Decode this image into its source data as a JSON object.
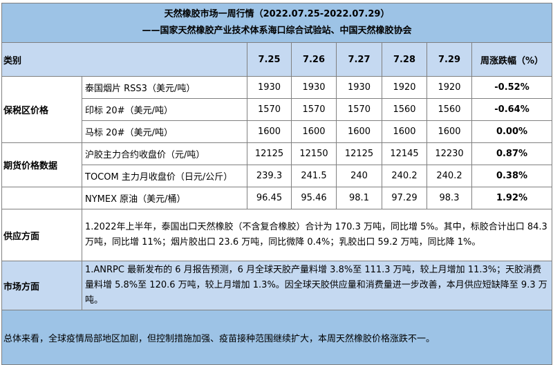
{
  "title": "天然橡胶市场一周行情（2022.07.25-2022.07.29）",
  "subtitle": "——国家天然橡胶产业技术体系海口综合试验站、中国天然橡胶协会",
  "header": {
    "category": "类别",
    "dates": [
      "7.25",
      "7.26",
      "7.27",
      "7.28",
      "7.29"
    ],
    "change": "周涨跌幅（%）"
  },
  "groups": {
    "bonded": "保税区价格",
    "futures": "期货价格数据",
    "supply": "供应方面",
    "market": "市场方面"
  },
  "rows": [
    {
      "item": "泰国烟片 RSS3（美元/吨）",
      "values": [
        "1930",
        "1930",
        "1930",
        "1920",
        "1920"
      ],
      "change": "-0.52%"
    },
    {
      "item": "印标 20#（美元/吨）",
      "values": [
        "1570",
        "1570",
        "1570",
        "1560",
        "1560"
      ],
      "change": "-0.64%"
    },
    {
      "item": "马标 20#（美元/吨）",
      "values": [
        "1600",
        "1600",
        "1600",
        "1600",
        "1600"
      ],
      "change": "0.00%"
    },
    {
      "item": "沪胶主力合约收盘价（元/吨）",
      "values": [
        "12125",
        "12150",
        "12125",
        "12145",
        "12230"
      ],
      "change": "0.87%"
    },
    {
      "item": "TOCOM 主力月收盘价（日元/公斤）",
      "values": [
        "239.3",
        "241.5",
        "240",
        "240.2",
        "240.2"
      ],
      "change": "0.38%"
    },
    {
      "item": "NYMEX 原油（美元/桶）",
      "values": [
        "96.45",
        "95.46",
        "98.1",
        "97.29",
        "98.3"
      ],
      "change": "1.92%"
    }
  ],
  "supply_text": "1.2022年上半年，泰国出口天然橡胶（不含复合橡胶）合计为 170.3 万吨，同比增 5%。其中，标胶合计出口 84.3 万吨，同比增 11%；烟片胶出口 23.6 万吨，同比微降 0.4%；乳胶出口 59.2 万吨，同比降 1%。",
  "market_text": "1.ANRPC 最新发布的 6 月报告预测，6 月全球天胶产量料增 3.8%至 111.3 万吨，较上月增加 11.3%；天胶消费量料增 5.8%至 120.6 万吨，较上月增加 1.3%。因全球天胶供应量和消费量进一步改善，本月供应短缺降至 9.3 万吨。",
  "summary_text": "总体来看，全球疫情局部地区加剧，但控制措施加强、疫苗接种范围继续扩大，本周天然橡胶价格涨跌不一。",
  "colors": {
    "title_bg": "#9dc3e6",
    "header_bg": "#c5d9f1",
    "market_bg": "#c5d9f1",
    "summary_bg": "#9dc3e6"
  }
}
